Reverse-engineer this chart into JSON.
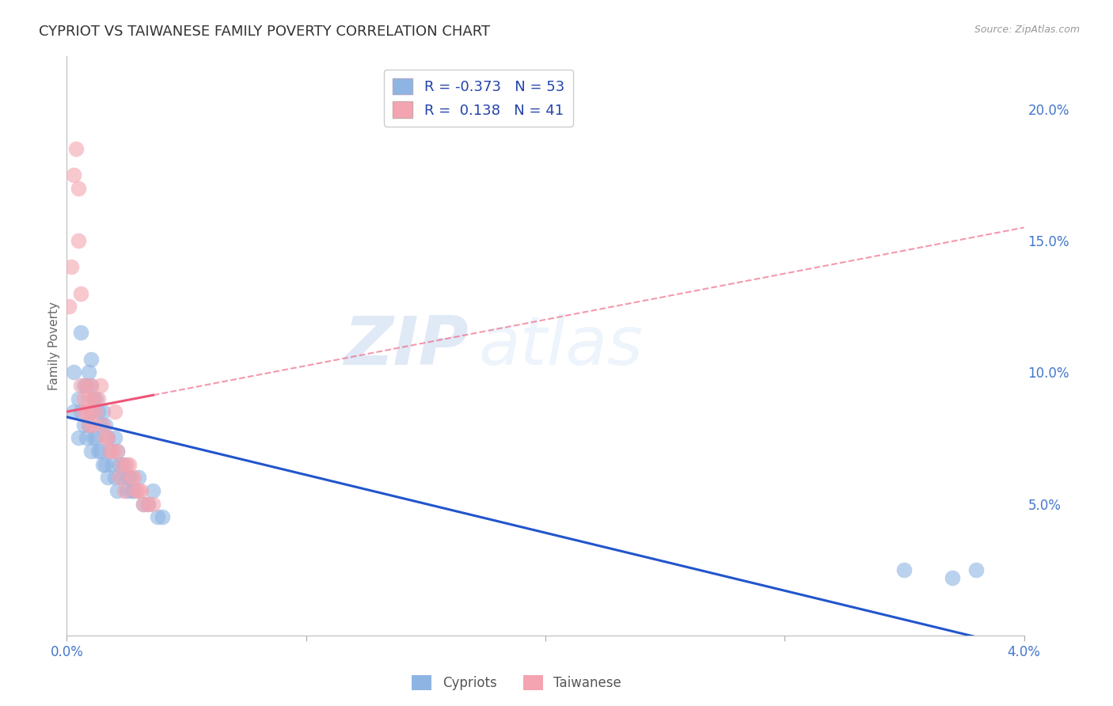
{
  "title": "CYPRIOT VS TAIWANESE FAMILY POVERTY CORRELATION CHART",
  "source": "Source: ZipAtlas.com",
  "ylabel": "Family Poverty",
  "y_ticks_right": [
    0.05,
    0.1,
    0.15,
    0.2
  ],
  "y_tick_labels_right": [
    "5.0%",
    "10.0%",
    "15.0%",
    "20.0%"
  ],
  "xlim": [
    0.0,
    0.04
  ],
  "ylim": [
    0.0,
    0.22
  ],
  "legend_r_blue": "-0.373",
  "legend_n_blue": "53",
  "legend_r_pink": "0.138",
  "legend_n_pink": "41",
  "blue_color": "#8EB4E3",
  "pink_color": "#F4A4B0",
  "blue_line_color": "#2255CC",
  "pink_line_color": "#EE5577",
  "axis_label_color": "#4477CC",
  "title_color": "#333333",
  "background_color": "#FFFFFF",
  "grid_color": "#CCCCCC",
  "watermark_zip": "ZIP",
  "watermark_atlas": "atlas",
  "cypriot_x": [
    0.0003,
    0.0003,
    0.0005,
    0.0005,
    0.0006,
    0.0006,
    0.0007,
    0.0007,
    0.0008,
    0.0008,
    0.0009,
    0.0009,
    0.001,
    0.001,
    0.001,
    0.001,
    0.0011,
    0.0011,
    0.0012,
    0.0012,
    0.0013,
    0.0013,
    0.0014,
    0.0014,
    0.0015,
    0.0015,
    0.0016,
    0.0016,
    0.0017,
    0.0017,
    0.0018,
    0.0019,
    0.002,
    0.002,
    0.0021,
    0.0021,
    0.0022,
    0.0023,
    0.0024,
    0.0025,
    0.0025,
    0.0026,
    0.0027,
    0.0028,
    0.003,
    0.0032,
    0.0034,
    0.0036,
    0.0038,
    0.004,
    0.035,
    0.037,
    0.038
  ],
  "cypriot_y": [
    0.1,
    0.085,
    0.09,
    0.075,
    0.115,
    0.085,
    0.095,
    0.08,
    0.095,
    0.075,
    0.1,
    0.08,
    0.105,
    0.095,
    0.085,
    0.07,
    0.09,
    0.075,
    0.09,
    0.075,
    0.085,
    0.07,
    0.08,
    0.07,
    0.085,
    0.065,
    0.08,
    0.065,
    0.075,
    0.06,
    0.07,
    0.065,
    0.075,
    0.06,
    0.07,
    0.055,
    0.065,
    0.06,
    0.065,
    0.06,
    0.055,
    0.06,
    0.055,
    0.055,
    0.06,
    0.05,
    0.05,
    0.055,
    0.045,
    0.045,
    0.025,
    0.022,
    0.025
  ],
  "taiwanese_x": [
    0.0001,
    0.0002,
    0.0003,
    0.0004,
    0.0005,
    0.0005,
    0.0006,
    0.0006,
    0.0007,
    0.0007,
    0.0008,
    0.0008,
    0.0009,
    0.0009,
    0.001,
    0.001,
    0.0011,
    0.0011,
    0.0012,
    0.0013,
    0.0014,
    0.0015,
    0.0016,
    0.0017,
    0.0018,
    0.0019,
    0.002,
    0.0021,
    0.0022,
    0.0023,
    0.0024,
    0.0025,
    0.0026,
    0.0027,
    0.0028,
    0.0029,
    0.003,
    0.0031,
    0.0032,
    0.0034,
    0.0036
  ],
  "taiwanese_y": [
    0.125,
    0.14,
    0.175,
    0.185,
    0.15,
    0.17,
    0.095,
    0.13,
    0.09,
    0.085,
    0.095,
    0.085,
    0.09,
    0.08,
    0.095,
    0.085,
    0.09,
    0.08,
    0.085,
    0.09,
    0.095,
    0.08,
    0.075,
    0.075,
    0.07,
    0.07,
    0.085,
    0.07,
    0.06,
    0.065,
    0.055,
    0.065,
    0.065,
    0.06,
    0.06,
    0.055,
    0.055,
    0.055,
    0.05,
    0.05,
    0.05
  ]
}
